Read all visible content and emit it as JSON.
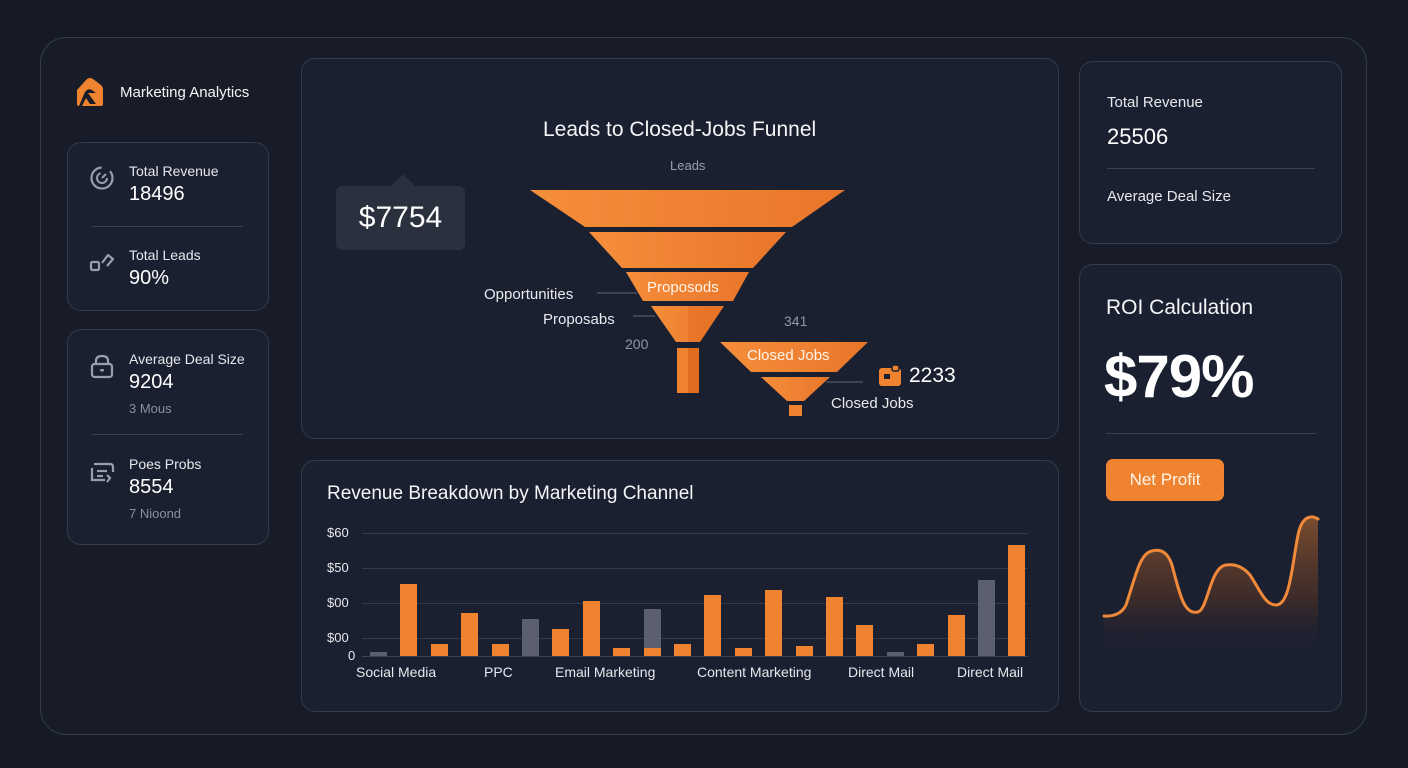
{
  "app": {
    "title": "Marketing Analytics",
    "brand_icon": "house-logo-icon",
    "accent_color": "#f0832f",
    "muted_bar_color": "#5b5f6e"
  },
  "sidebar": {
    "card1": {
      "items": [
        {
          "icon": "gauge-icon",
          "label": "Total Revenue",
          "value": "18496"
        },
        {
          "icon": "link-icon",
          "label": "Total Leads",
          "value": "90%"
        }
      ]
    },
    "card2": {
      "items": [
        {
          "icon": "lock-icon",
          "label": "Average Deal Size",
          "value": "9204",
          "sub": "3 Mous"
        },
        {
          "icon": "list-icon",
          "label": "Poes Probs",
          "value": "8554",
          "sub": "7 Nioond"
        }
      ]
    }
  },
  "funnel": {
    "title": "Leads to Closed-Jobs Funnel",
    "top_label": "Leads",
    "tooltip_value": "$7754",
    "labels": {
      "opportunities": "Opportunities",
      "proposals": "Proposabs",
      "proposals_segment": "Proposods",
      "closed_jobs_segment": "Closed Jobs",
      "closed_jobs": "Closed Jobs"
    },
    "numbers": {
      "n200": "200",
      "n341": "341",
      "closed_value": "2233"
    },
    "closed_icon": "briefcase-icon"
  },
  "revenue_chart": {
    "title": "Revenue Breakdown by Marketing Channel"
  },
  "right_panel": {
    "total_revenue_label": "Total Revenue",
    "total_revenue_value": "25506",
    "avg_deal_label": "Average Deal Size",
    "roi_title": "ROI Calculation",
    "roi_value": "$79%",
    "net_profit_button": "Net Profit"
  },
  "chart_data": [
    {
      "type": "bar",
      "title": "Revenue Breakdown by Marketing Channel",
      "xlabel": "",
      "ylabel": "",
      "y_tick_labels": [
        "0",
        "$00",
        "$00",
        "$50",
        "$60"
      ],
      "ylim": [
        0,
        60
      ],
      "grid": true,
      "legend": null,
      "category_labels": [
        "Social Media",
        "PPC",
        "Email Marketing",
        "Content Marketing",
        "Direct Mail",
        "Direct Mail"
      ],
      "bars": [
        {
          "color": "gray",
          "value": 2
        },
        {
          "color": "orange",
          "value": 35
        },
        {
          "color": "orange",
          "value": 6
        },
        {
          "color": "orange",
          "value": 21
        },
        {
          "color": "orange",
          "value": 6
        },
        {
          "color": "gray",
          "value": 18
        },
        {
          "color": "orange",
          "value": 13
        },
        {
          "color": "orange",
          "value": 27
        },
        {
          "color": "orange",
          "value": 4
        },
        {
          "color": "gray",
          "value": 23,
          "stacked_orange": 4
        },
        {
          "color": "orange",
          "value": 6
        },
        {
          "color": "orange",
          "value": 30
        },
        {
          "color": "orange",
          "value": 4
        },
        {
          "color": "orange",
          "value": 32
        },
        {
          "color": "orange",
          "value": 5
        },
        {
          "color": "orange",
          "value": 29
        },
        {
          "color": "orange",
          "value": 15
        },
        {
          "color": "gray",
          "value": 2
        },
        {
          "color": "orange",
          "value": 6
        },
        {
          "color": "orange",
          "value": 20
        },
        {
          "color": "gray",
          "value": 37
        },
        {
          "color": "orange",
          "value": 54
        }
      ]
    },
    {
      "type": "line",
      "title": "Net Profit",
      "style": "area",
      "x": [
        0,
        1,
        2,
        3,
        4,
        5,
        6,
        7,
        8,
        9,
        10,
        11,
        12
      ],
      "values": [
        10,
        12,
        60,
        62,
        8,
        15,
        48,
        44,
        38,
        14,
        16,
        92,
        93
      ],
      "grid": false
    },
    {
      "type": "funnel",
      "title": "Leads to Closed-Jobs Funnel",
      "stages": [
        "Leads",
        "Opportunities",
        "Proposods",
        "Proposabs",
        "Closed Jobs"
      ],
      "annotations": [
        "$7754",
        "200",
        "341",
        "2233"
      ]
    }
  ]
}
